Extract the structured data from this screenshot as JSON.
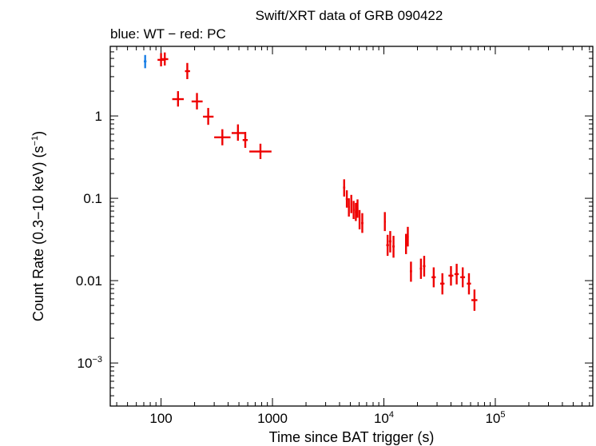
{
  "chart_data": {
    "type": "scatter",
    "title": "Swift/XRT data of GRB 090422",
    "subtitle": "blue: WT − red: PC",
    "xlabel": "Time since BAT trigger (s)",
    "ylabel_parts": {
      "main": "Count Rate (0.3−10 keV) (s",
      "sup": "−1",
      "close": ")"
    },
    "xscale": "log",
    "yscale": "log",
    "xlim": [
      35,
      750000
    ],
    "ylim": [
      0.0003,
      7
    ],
    "x_ticks": [
      {
        "value": 100,
        "label": "100"
      },
      {
        "value": 1000,
        "label": "1000"
      },
      {
        "value": 10000,
        "base": "10",
        "exp": "4"
      },
      {
        "value": 100000,
        "base": "10",
        "exp": "5"
      }
    ],
    "y_ticks": [
      {
        "value": 0.001,
        "base": "10",
        "exp": "−3"
      },
      {
        "value": 0.01,
        "label": "0.01"
      },
      {
        "value": 0.1,
        "label": "0.1"
      },
      {
        "value": 1,
        "label": "1"
      }
    ],
    "series": [
      {
        "name": "WT",
        "color": "#1a7fe6",
        "points": [
          {
            "x": 72,
            "y": 4.6,
            "xerr": [
              70,
              74
            ],
            "yerr": [
              3.8,
              5.5
            ]
          }
        ]
      },
      {
        "name": "PC",
        "color": "#ee0000",
        "points": [
          {
            "x": 100,
            "y": 4.8,
            "xerr": [
              93,
              107
            ],
            "yerr": [
              4.0,
              5.8
            ]
          },
          {
            "x": 108,
            "y": 4.9,
            "xerr": [
              101,
              116
            ],
            "yerr": [
              4.1,
              5.9
            ]
          },
          {
            "x": 142,
            "y": 1.6,
            "xerr": [
              126,
              160
            ],
            "yerr": [
              1.3,
              2.0
            ]
          },
          {
            "x": 172,
            "y": 3.5,
            "xerr": [
              164,
              182
            ],
            "yerr": [
              2.8,
              4.4
            ]
          },
          {
            "x": 210,
            "y": 1.5,
            "xerr": [
              188,
              236
            ],
            "yerr": [
              1.2,
              1.9
            ]
          },
          {
            "x": 265,
            "y": 0.98,
            "xerr": [
              238,
              296
            ],
            "yerr": [
              0.78,
              1.25
            ]
          },
          {
            "x": 355,
            "y": 0.55,
            "xerr": [
              300,
              420
            ],
            "yerr": [
              0.44,
              0.69
            ]
          },
          {
            "x": 490,
            "y": 0.62,
            "xerr": [
              430,
              560
            ],
            "yerr": [
              0.5,
              0.79
            ]
          },
          {
            "x": 570,
            "y": 0.51,
            "xerr": [
              540,
              600
            ],
            "yerr": [
              0.41,
              0.64
            ]
          },
          {
            "x": 780,
            "y": 0.37,
            "xerr": [
              620,
              980
            ],
            "yerr": [
              0.3,
              0.46
            ]
          },
          {
            "x": 4400,
            "y": 0.135,
            "xerr": [
              4300,
              4500
            ],
            "yerr": [
              0.105,
              0.17
            ]
          },
          {
            "x": 4650,
            "y": 0.098,
            "xerr": [
              4550,
              4750
            ],
            "yerr": [
              0.077,
              0.125
            ]
          },
          {
            "x": 4850,
            "y": 0.078,
            "xerr": [
              4760,
              4940
            ],
            "yerr": [
              0.06,
              0.1
            ]
          },
          {
            "x": 5100,
            "y": 0.085,
            "xerr": [
              5000,
              5200
            ],
            "yerr": [
              0.066,
              0.11
            ]
          },
          {
            "x": 5350,
            "y": 0.072,
            "xerr": [
              5250,
              5450
            ],
            "yerr": [
              0.056,
              0.093
            ]
          },
          {
            "x": 5600,
            "y": 0.068,
            "xerr": [
              5500,
              5700
            ],
            "yerr": [
              0.053,
              0.088
            ]
          },
          {
            "x": 5800,
            "y": 0.075,
            "xerr": [
              5720,
              5900
            ],
            "yerr": [
              0.058,
              0.097
            ]
          },
          {
            "x": 6050,
            "y": 0.055,
            "xerr": [
              5950,
              6150
            ],
            "yerr": [
              0.042,
              0.072
            ]
          },
          {
            "x": 6400,
            "y": 0.05,
            "xerr": [
              6250,
              6550
            ],
            "yerr": [
              0.038,
              0.066
            ]
          },
          {
            "x": 10200,
            "y": 0.052,
            "xerr": [
              10000,
              10400
            ],
            "yerr": [
              0.04,
              0.068
            ]
          },
          {
            "x": 10800,
            "y": 0.027,
            "xerr": [
              10500,
              11100
            ],
            "yerr": [
              0.02,
              0.036
            ]
          },
          {
            "x": 11400,
            "y": 0.03,
            "xerr": [
              11100,
              11700
            ],
            "yerr": [
              0.022,
              0.04
            ]
          },
          {
            "x": 12200,
            "y": 0.026,
            "xerr": [
              11900,
              12500
            ],
            "yerr": [
              0.019,
              0.035
            ]
          },
          {
            "x": 15800,
            "y": 0.028,
            "xerr": [
              15500,
              16100
            ],
            "yerr": [
              0.021,
              0.037
            ]
          },
          {
            "x": 16400,
            "y": 0.034,
            "xerr": [
              16100,
              16700
            ],
            "yerr": [
              0.026,
              0.045
            ]
          },
          {
            "x": 17500,
            "y": 0.013,
            "xerr": [
              17100,
              17900
            ],
            "yerr": [
              0.0097,
              0.017
            ]
          },
          {
            "x": 21500,
            "y": 0.014,
            "xerr": [
              21000,
              22000
            ],
            "yerr": [
              0.0105,
              0.0185
            ]
          },
          {
            "x": 23000,
            "y": 0.015,
            "xerr": [
              22400,
              23600
            ],
            "yerr": [
              0.0112,
              0.02
            ]
          },
          {
            "x": 28000,
            "y": 0.011,
            "xerr": [
              26800,
              29200
            ],
            "yerr": [
              0.0083,
              0.0145
            ]
          },
          {
            "x": 33500,
            "y": 0.0092,
            "xerr": [
              32000,
              35000
            ],
            "yerr": [
              0.0068,
              0.0123
            ]
          },
          {
            "x": 40000,
            "y": 0.0115,
            "xerr": [
              38000,
              42000
            ],
            "yerr": [
              0.0087,
              0.015
            ]
          },
          {
            "x": 45000,
            "y": 0.012,
            "xerr": [
              43000,
              47000
            ],
            "yerr": [
              0.009,
              0.016
            ]
          },
          {
            "x": 51000,
            "y": 0.011,
            "xerr": [
              48500,
              53500
            ],
            "yerr": [
              0.0083,
              0.0145
            ]
          },
          {
            "x": 58000,
            "y": 0.0092,
            "xerr": [
              55500,
              60500
            ],
            "yerr": [
              0.0068,
              0.0123
            ]
          },
          {
            "x": 65000,
            "y": 0.0058,
            "xerr": [
              61000,
              69000
            ],
            "yerr": [
              0.0043,
              0.0078
            ]
          }
        ]
      }
    ]
  }
}
